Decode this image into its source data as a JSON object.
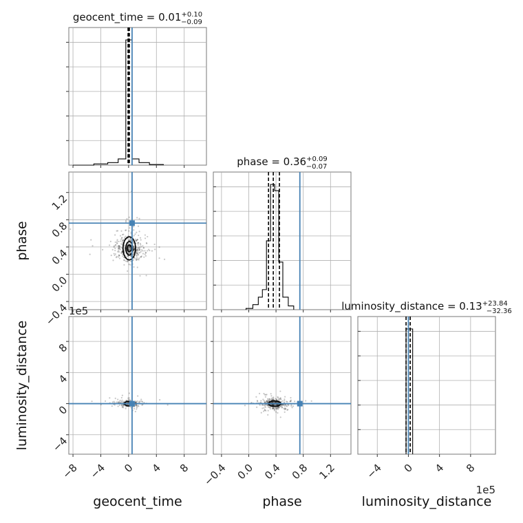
{
  "chart_data": {
    "type": "corner",
    "colors": {
      "truth": "#4682b4",
      "hist": "#000000",
      "grid": "#b0b0b0",
      "scatter": "#000000"
    },
    "parameters": [
      {
        "name": "geocent_time",
        "label": "geocent_time",
        "range": [
          -8.6,
          11.2
        ],
        "ticks": [
          -8,
          -4,
          0,
          4,
          8
        ],
        "tick_labels": [
          "−8",
          "−4",
          "0",
          "4",
          "8"
        ],
        "truth": 0.5,
        "median": 0.01,
        "q_lo": -0.08,
        "q_hi": 0.11,
        "title_main": "geocent_time = 0.01",
        "title_sup": "+0.10",
        "title_sub": "−0.09",
        "offset_label": "",
        "hist_bins": [
          {
            "x0": -8.0,
            "x1": -5.0,
            "h": 0.0
          },
          {
            "x0": -5.0,
            "x1": -3.0,
            "h": 0.01
          },
          {
            "x0": -3.0,
            "x1": -1.5,
            "h": 0.02
          },
          {
            "x0": -1.5,
            "x1": -0.4,
            "h": 0.05
          },
          {
            "x0": -0.4,
            "x1": 0.5,
            "h": 1.0
          },
          {
            "x0": 0.5,
            "x1": 1.5,
            "h": 0.05
          },
          {
            "x0": 1.5,
            "x1": 3.0,
            "h": 0.02
          },
          {
            "x0": 3.0,
            "x1": 5.0,
            "h": 0.005
          }
        ]
      },
      {
        "name": "phase",
        "label": "phase",
        "range": [
          -0.52,
          1.5
        ],
        "ticks": [
          -0.4,
          0.0,
          0.4,
          0.8,
          1.2
        ],
        "tick_labels": [
          "−0.4",
          "0.0",
          "0.4",
          "0.8",
          "1.2"
        ],
        "truth": 0.75,
        "median": 0.36,
        "q_lo": 0.29,
        "q_hi": 0.45,
        "title_main": "phase = 0.36",
        "title_sup": "+0.09",
        "title_sub": "−0.07",
        "offset_label": "",
        "hist_bins": [
          {
            "x0": -0.04,
            "x1": 0.06,
            "h": 0.01
          },
          {
            "x0": 0.06,
            "x1": 0.14,
            "h": 0.04
          },
          {
            "x0": 0.14,
            "x1": 0.2,
            "h": 0.1
          },
          {
            "x0": 0.2,
            "x1": 0.26,
            "h": 0.16
          },
          {
            "x0": 0.26,
            "x1": 0.32,
            "h": 0.55
          },
          {
            "x0": 0.32,
            "x1": 0.38,
            "h": 1.0
          },
          {
            "x0": 0.38,
            "x1": 0.44,
            "h": 0.95
          },
          {
            "x0": 0.44,
            "x1": 0.5,
            "h": 0.38
          },
          {
            "x0": 0.5,
            "x1": 0.58,
            "h": 0.1
          },
          {
            "x0": 0.58,
            "x1": 0.66,
            "h": 0.03
          }
        ]
      },
      {
        "name": "luminosity_distance",
        "label": "luminosity_distance",
        "range": [
          -6.5,
          11.2
        ],
        "ticks": [
          -4,
          0,
          4,
          8
        ],
        "tick_labels": [
          "−4",
          "0",
          "4",
          "8"
        ],
        "truth": 0.0,
        "median": 0.0,
        "q_lo": -0.3,
        "q_hi": 0.24,
        "title_main": "luminosity_distance = 0.13",
        "title_sup": "+23.84",
        "title_sub": "−32.36",
        "offset_label": "1e5",
        "hist_bins": [
          {
            "x0": -0.3,
            "x1": 0.55,
            "h": 1.0
          }
        ]
      }
    ],
    "scatter": [
      {
        "x": 0,
        "y": 1,
        "cx": 0.1,
        "cy": 0.38,
        "sx": 1.0,
        "sy": 0.1,
        "n": 380,
        "contours": [
          {
            "rx": 0.9,
            "ry": 0.17
          },
          {
            "rx": 0.5,
            "ry": 0.1
          },
          {
            "rx": 0.3,
            "ry": 0.05
          }
        ]
      },
      {
        "x": 0,
        "y": 2,
        "cx": 0.0,
        "cy": 0.0,
        "sx": 1.1,
        "sy": 0.25,
        "n": 160,
        "contours": [
          {
            "rx": 0.6,
            "ry": 0.3
          }
        ]
      },
      {
        "x": 1,
        "y": 2,
        "cx": 0.38,
        "cy": 0.0,
        "sx": 0.09,
        "sy": 0.35,
        "n": 320,
        "contours": [
          {
            "rx": 0.09,
            "ry": 0.35
          }
        ]
      }
    ]
  }
}
